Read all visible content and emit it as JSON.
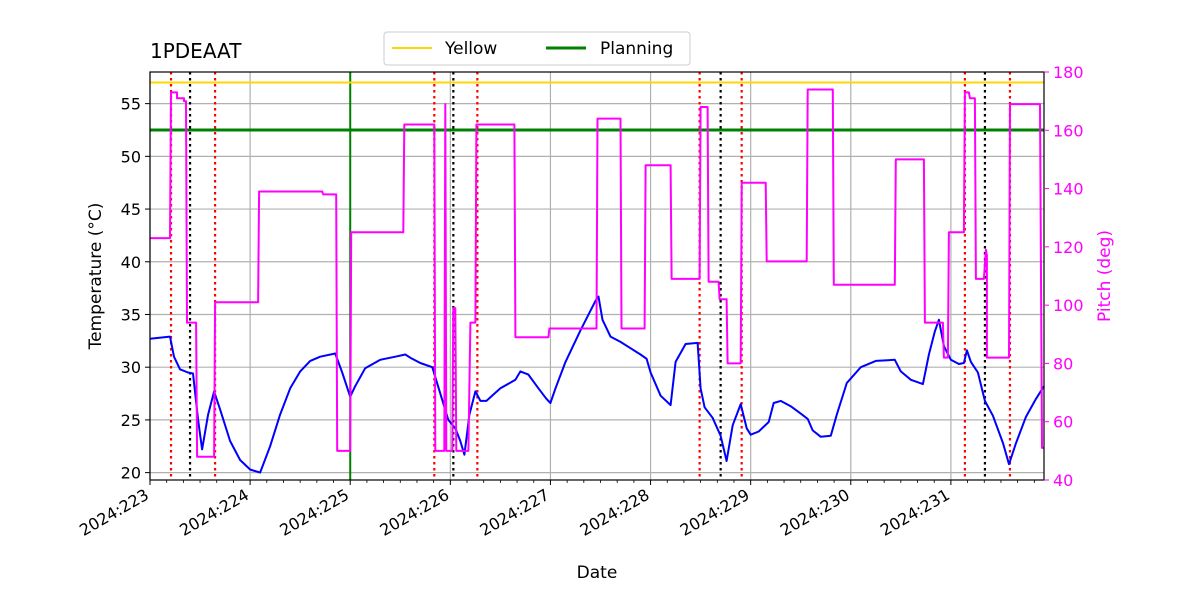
{
  "chart_data": {
    "type": "line",
    "title": "1PDEAAT",
    "xlabel": "Date",
    "ylabel": "Temperature ($^\\circ$C)",
    "ylabel_display": "Temperature (°C)",
    "y2label": "Pitch (deg)",
    "xlim": [
      223.0,
      231.93
    ],
    "ylim": [
      19.3,
      58.0
    ],
    "y2lim": [
      40,
      180
    ],
    "x_ticks": [
      223,
      224,
      225,
      226,
      227,
      228,
      229,
      230,
      231
    ],
    "x_tick_labels": [
      "2024:223",
      "2024:224",
      "2024:225",
      "2024:226",
      "2024:227",
      "2024:228",
      "2024:229",
      "2024:230",
      "2024:231"
    ],
    "y_ticks": [
      20,
      25,
      30,
      35,
      40,
      45,
      50,
      55
    ],
    "y2_ticks": [
      40,
      60,
      80,
      100,
      120,
      140,
      160,
      180
    ],
    "grid": true,
    "legend": {
      "placement": "top-center",
      "entries": [
        {
          "name": "Yellow",
          "color": "#ffd700"
        },
        {
          "name": "Planning",
          "color": "#008000"
        }
      ]
    },
    "hlines": [
      {
        "name": "Yellow",
        "y": 57.0,
        "color": "#ffd700"
      },
      {
        "name": "Planning",
        "y": 52.5,
        "color": "#008000"
      }
    ],
    "vline_now": {
      "x": 225.0,
      "color": "#008000"
    },
    "red_dotted_vlines": [
      223.21,
      223.65,
      225.84,
      226.27,
      228.49,
      228.91,
      231.14,
      231.59
    ],
    "black_dotted_vlines": [
      223.4,
      226.03,
      228.7,
      231.34
    ],
    "series": [
      {
        "name": "Temperature",
        "axis": "left",
        "color": "#0000ff",
        "points": [
          [
            223.0,
            32.7
          ],
          [
            223.2,
            32.9
          ],
          [
            223.24,
            31.0
          ],
          [
            223.3,
            29.8
          ],
          [
            223.38,
            29.5
          ],
          [
            223.43,
            29.4
          ],
          [
            223.48,
            25.0
          ],
          [
            223.52,
            22.2
          ],
          [
            223.58,
            25.5
          ],
          [
            223.64,
            27.7
          ],
          [
            223.7,
            26.0
          ],
          [
            223.8,
            23.0
          ],
          [
            223.9,
            21.2
          ],
          [
            224.0,
            20.3
          ],
          [
            224.1,
            20.0
          ],
          [
            224.2,
            22.5
          ],
          [
            224.3,
            25.5
          ],
          [
            224.4,
            28.0
          ],
          [
            224.5,
            29.6
          ],
          [
            224.6,
            30.6
          ],
          [
            224.7,
            31.0
          ],
          [
            224.85,
            31.3
          ],
          [
            224.92,
            29.5
          ],
          [
            225.0,
            27.2
          ],
          [
            225.05,
            28.2
          ],
          [
            225.15,
            29.9
          ],
          [
            225.3,
            30.7
          ],
          [
            225.45,
            31.0
          ],
          [
            225.55,
            31.2
          ],
          [
            225.6,
            30.9
          ],
          [
            225.7,
            30.4
          ],
          [
            225.82,
            30.0
          ],
          [
            225.9,
            27.5
          ],
          [
            225.98,
            25.0
          ],
          [
            226.05,
            24.2
          ],
          [
            226.1,
            23.0
          ],
          [
            226.14,
            21.7
          ],
          [
            226.19,
            25.5
          ],
          [
            226.25,
            27.7
          ],
          [
            226.3,
            26.8
          ],
          [
            226.36,
            26.8
          ],
          [
            226.5,
            28.0
          ],
          [
            226.65,
            28.8
          ],
          [
            226.7,
            29.6
          ],
          [
            226.78,
            29.3
          ],
          [
            226.88,
            28.0
          ],
          [
            226.96,
            27.0
          ],
          [
            227.0,
            26.6
          ],
          [
            227.05,
            28.0
          ],
          [
            227.15,
            30.5
          ],
          [
            227.3,
            33.5
          ],
          [
            227.45,
            36.3
          ],
          [
            227.48,
            36.7
          ],
          [
            227.52,
            34.5
          ],
          [
            227.6,
            32.9
          ],
          [
            227.7,
            32.4
          ],
          [
            227.8,
            31.8
          ],
          [
            227.9,
            31.2
          ],
          [
            227.96,
            30.8
          ],
          [
            228.0,
            29.5
          ],
          [
            228.1,
            27.3
          ],
          [
            228.2,
            26.4
          ],
          [
            228.25,
            30.5
          ],
          [
            228.35,
            32.2
          ],
          [
            228.47,
            32.3
          ],
          [
            228.5,
            28.0
          ],
          [
            228.54,
            26.2
          ],
          [
            228.62,
            25.2
          ],
          [
            228.7,
            23.5
          ],
          [
            228.76,
            21.1
          ],
          [
            228.82,
            24.5
          ],
          [
            228.9,
            26.5
          ],
          [
            228.96,
            24.2
          ],
          [
            229.0,
            23.6
          ],
          [
            229.08,
            23.9
          ],
          [
            229.18,
            24.8
          ],
          [
            229.23,
            26.6
          ],
          [
            229.3,
            26.8
          ],
          [
            229.4,
            26.3
          ],
          [
            229.5,
            25.6
          ],
          [
            229.57,
            25.1
          ],
          [
            229.62,
            24.0
          ],
          [
            229.7,
            23.4
          ],
          [
            229.8,
            23.5
          ],
          [
            229.86,
            25.5
          ],
          [
            229.96,
            28.5
          ],
          [
            230.1,
            30.0
          ],
          [
            230.25,
            30.6
          ],
          [
            230.44,
            30.7
          ],
          [
            230.5,
            29.6
          ],
          [
            230.6,
            28.8
          ],
          [
            230.72,
            28.4
          ],
          [
            230.78,
            31.2
          ],
          [
            230.84,
            33.4
          ],
          [
            230.88,
            34.5
          ],
          [
            230.93,
            32.0
          ],
          [
            231.0,
            30.7
          ],
          [
            231.08,
            30.3
          ],
          [
            231.13,
            30.4
          ],
          [
            231.16,
            31.6
          ],
          [
            231.2,
            30.5
          ],
          [
            231.27,
            29.5
          ],
          [
            231.34,
            26.8
          ],
          [
            231.42,
            25.4
          ],
          [
            231.52,
            22.8
          ],
          [
            231.58,
            20.8
          ],
          [
            231.65,
            22.8
          ],
          [
            231.75,
            25.3
          ],
          [
            231.85,
            27.0
          ],
          [
            231.93,
            28.2
          ]
        ]
      },
      {
        "name": "Pitch",
        "axis": "right",
        "color": "#ff00ff",
        "points": [
          [
            223.0,
            123
          ],
          [
            223.2,
            123
          ],
          [
            223.21,
            173
          ],
          [
            223.27,
            173
          ],
          [
            223.27,
            171
          ],
          [
            223.34,
            171
          ],
          [
            223.34,
            170
          ],
          [
            223.36,
            170
          ],
          [
            223.37,
            94
          ],
          [
            223.46,
            94
          ],
          [
            223.47,
            48
          ],
          [
            223.64,
            48
          ],
          [
            223.65,
            101
          ],
          [
            224.08,
            101
          ],
          [
            224.09,
            139
          ],
          [
            224.72,
            139
          ],
          [
            224.73,
            138
          ],
          [
            224.86,
            138
          ],
          [
            224.87,
            50
          ],
          [
            225.0,
            50
          ],
          [
            225.01,
            125
          ],
          [
            225.53,
            125
          ],
          [
            225.54,
            162
          ],
          [
            225.84,
            162
          ],
          [
            225.85,
            50
          ],
          [
            225.94,
            50
          ],
          [
            225.95,
            169
          ],
          [
            225.96,
            50
          ],
          [
            226.02,
            50
          ],
          [
            226.03,
            99
          ],
          [
            226.05,
            99
          ],
          [
            226.06,
            50
          ],
          [
            226.18,
            50
          ],
          [
            226.2,
            94
          ],
          [
            226.25,
            94
          ],
          [
            226.26,
            162
          ],
          [
            226.64,
            162
          ],
          [
            226.65,
            89
          ],
          [
            226.98,
            89
          ],
          [
            226.99,
            92
          ],
          [
            227.46,
            92
          ],
          [
            227.47,
            164
          ],
          [
            227.7,
            164
          ],
          [
            227.71,
            92
          ],
          [
            227.94,
            92
          ],
          [
            227.95,
            148
          ],
          [
            228.2,
            148
          ],
          [
            228.21,
            109
          ],
          [
            228.49,
            109
          ],
          [
            228.5,
            168
          ],
          [
            228.57,
            168
          ],
          [
            228.58,
            108
          ],
          [
            228.68,
            108
          ],
          [
            228.69,
            102
          ],
          [
            228.76,
            102
          ],
          [
            228.77,
            80
          ],
          [
            228.9,
            80
          ],
          [
            228.91,
            142
          ],
          [
            229.15,
            142
          ],
          [
            229.16,
            115
          ],
          [
            229.56,
            115
          ],
          [
            229.57,
            174
          ],
          [
            229.82,
            174
          ],
          [
            229.83,
            107
          ],
          [
            230.44,
            107
          ],
          [
            230.45,
            150
          ],
          [
            230.73,
            150
          ],
          [
            230.74,
            94
          ],
          [
            230.92,
            94
          ],
          [
            230.93,
            82
          ],
          [
            230.97,
            82
          ],
          [
            230.98,
            125
          ],
          [
            231.13,
            125
          ],
          [
            231.14,
            173
          ],
          [
            231.18,
            173
          ],
          [
            231.19,
            171
          ],
          [
            231.24,
            171
          ],
          [
            231.25,
            109
          ],
          [
            231.33,
            109
          ],
          [
            231.35,
            119
          ],
          [
            231.36,
            117
          ],
          [
            231.36,
            82
          ],
          [
            231.58,
            82
          ],
          [
            231.59,
            169
          ],
          [
            231.89,
            169
          ],
          [
            231.91,
            51
          ],
          [
            231.93,
            51
          ]
        ]
      }
    ]
  }
}
